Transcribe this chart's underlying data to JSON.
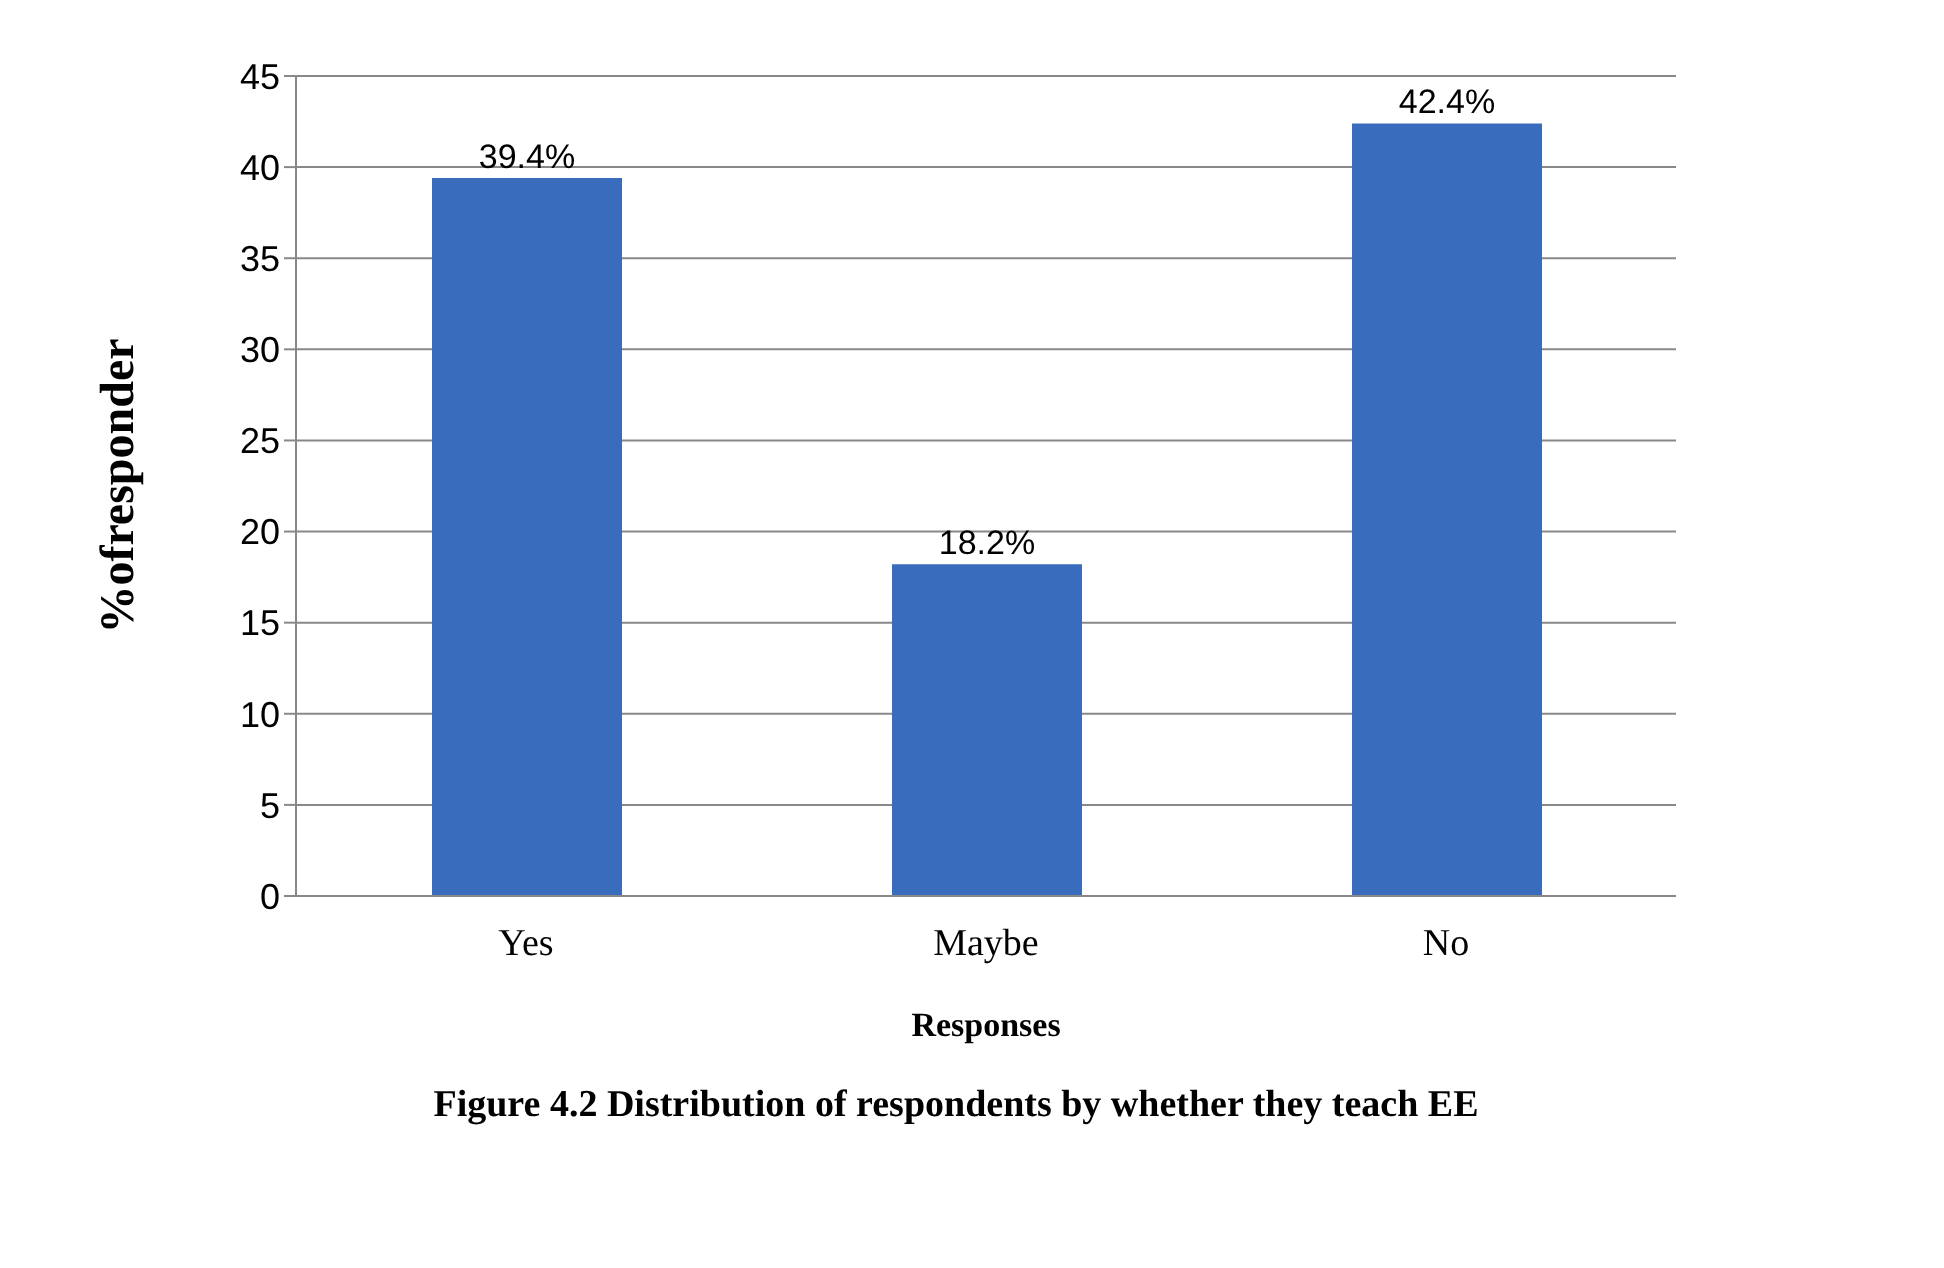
{
  "chart_data": {
    "type": "bar",
    "title": "Figure 4.2 Distribution of respondents by whether they teach EE",
    "xlabel": "Responses",
    "ylabel": "%ofresponder",
    "categories": [
      "Yes",
      "Maybe",
      "No"
    ],
    "values": [
      39.4,
      18.2,
      42.4
    ],
    "value_labels": [
      "39.4%",
      "18.2%",
      "42.4%"
    ],
    "color": "#3a6cbd",
    "ylim": [
      0,
      45
    ],
    "yticks": [
      0,
      5,
      10,
      15,
      20,
      25,
      30,
      35,
      40,
      45
    ],
    "grid": "y"
  }
}
